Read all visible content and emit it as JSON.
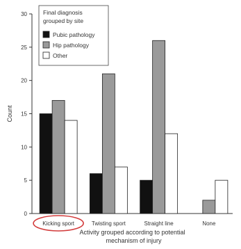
{
  "chart_data": {
    "type": "bar",
    "xlabel": "Activity grouped according to potential mechanism of injury",
    "xlabel_lines": [
      "Activity grouped according to potential",
      "mechanism of injury"
    ],
    "ylabel": "Count",
    "ylim": [
      0,
      30
    ],
    "yticks": [
      0,
      5,
      10,
      15,
      20,
      25,
      30
    ],
    "categories": [
      "Kicking sport",
      "Twisting sport",
      "Straight line",
      "None"
    ],
    "legend_title": [
      "Final diagnosis",
      "grouped by site"
    ],
    "legend_position": "top-left",
    "grid": false,
    "series": [
      {
        "name": "Pubic pathology",
        "color": "#111111",
        "values": [
          15,
          6,
          5,
          0
        ]
      },
      {
        "name": "Hip pathology",
        "color": "#9a9a9a",
        "values": [
          17,
          21,
          26,
          2
        ]
      },
      {
        "name": "Other",
        "color": "#ffffff",
        "values": [
          14,
          7,
          12,
          5
        ]
      }
    ],
    "annotation": {
      "type": "ellipse-highlight",
      "target": "Kicking sport",
      "color": "#d23a3a"
    }
  }
}
